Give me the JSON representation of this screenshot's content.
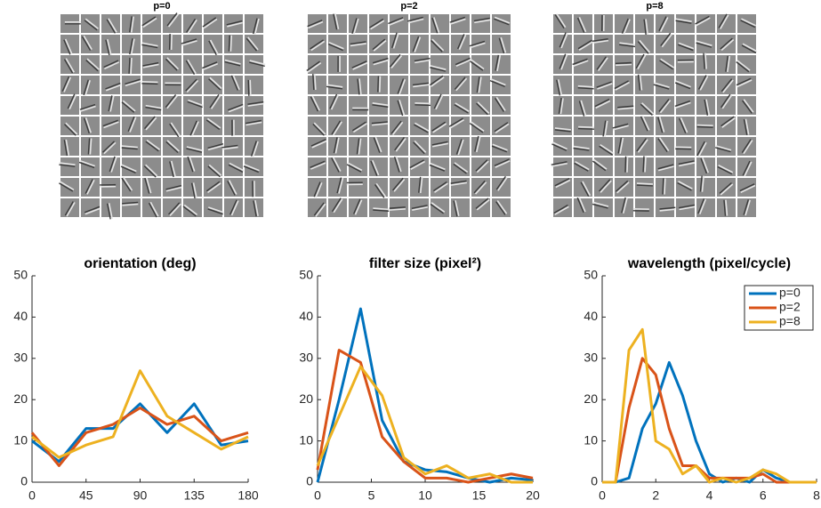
{
  "panels": [
    {
      "title": "p=0"
    },
    {
      "title": "p=2"
    },
    {
      "title": "p=8"
    }
  ],
  "chart_data": [
    {
      "type": "line",
      "title": "orientation (deg)",
      "x": [
        0,
        22.5,
        45,
        67.5,
        90,
        112.5,
        135,
        157.5,
        180
      ],
      "series": [
        {
          "name": "p=0",
          "color": "#0072bd",
          "values": [
            10,
            5,
            13,
            13,
            19,
            12,
            19,
            9,
            10
          ]
        },
        {
          "name": "p=2",
          "color": "#d95319",
          "values": [
            12,
            4,
            12,
            14,
            18,
            14,
            16,
            10,
            12
          ]
        },
        {
          "name": "p=8",
          "color": "#edb120",
          "values": [
            11,
            6,
            9,
            11,
            27,
            16,
            12,
            8,
            11
          ]
        }
      ],
      "xlim": [
        0,
        180
      ],
      "xticks": [
        0,
        45,
        90,
        135,
        180
      ],
      "ylim": [
        0,
        50
      ],
      "yticks": [
        0,
        10,
        20,
        30,
        40,
        50
      ]
    },
    {
      "type": "line",
      "title": "filter size (pixel²)",
      "x": [
        0,
        2,
        4,
        6,
        8,
        10,
        12,
        14,
        16,
        18,
        20
      ],
      "series": [
        {
          "name": "p=0",
          "color": "#0072bd",
          "values": [
            0,
            20,
            42,
            15,
            5,
            3,
            2.5,
            1,
            0,
            1,
            0.5
          ]
        },
        {
          "name": "p=2",
          "color": "#d95319",
          "values": [
            3,
            32,
            29,
            11,
            5,
            1,
            1,
            0,
            1,
            2,
            1
          ]
        },
        {
          "name": "p=8",
          "color": "#edb120",
          "values": [
            4,
            16,
            28,
            21,
            6,
            2,
            4,
            1,
            2,
            0,
            0
          ]
        }
      ],
      "xlim": [
        0,
        20
      ],
      "xticks": [
        0,
        5,
        10,
        15,
        20
      ],
      "ylim": [
        0,
        50
      ],
      "yticks": [
        0,
        10,
        20,
        30,
        40,
        50
      ]
    },
    {
      "type": "line",
      "title": "wavelength (pixel/cycle)",
      "x": [
        0,
        0.5,
        1,
        1.5,
        2,
        2.5,
        3,
        3.5,
        4,
        4.5,
        5,
        5.5,
        6,
        6.5,
        7,
        7.5,
        8
      ],
      "series": [
        {
          "name": "p=0",
          "color": "#0072bd",
          "values": [
            0,
            0,
            1,
            13,
            19,
            29,
            21,
            10,
            2,
            0,
            1,
            0,
            3,
            1,
            0,
            0,
            0
          ]
        },
        {
          "name": "p=2",
          "color": "#d95319",
          "values": [
            0,
            0,
            18,
            30,
            26,
            13,
            4,
            4,
            1,
            1,
            1,
            1,
            2,
            0,
            0,
            0,
            0
          ]
        },
        {
          "name": "p=8",
          "color": "#edb120",
          "values": [
            0,
            0,
            32,
            37,
            10,
            8,
            2,
            4,
            0,
            1,
            0,
            1,
            3,
            2,
            0,
            0,
            0
          ]
        }
      ],
      "xlim": [
        0,
        8
      ],
      "xticks": [
        0,
        2,
        4,
        6,
        8
      ],
      "ylim": [
        0,
        50
      ],
      "yticks": [
        0,
        10,
        20,
        30,
        40,
        50
      ],
      "legend": "upper right"
    }
  ]
}
